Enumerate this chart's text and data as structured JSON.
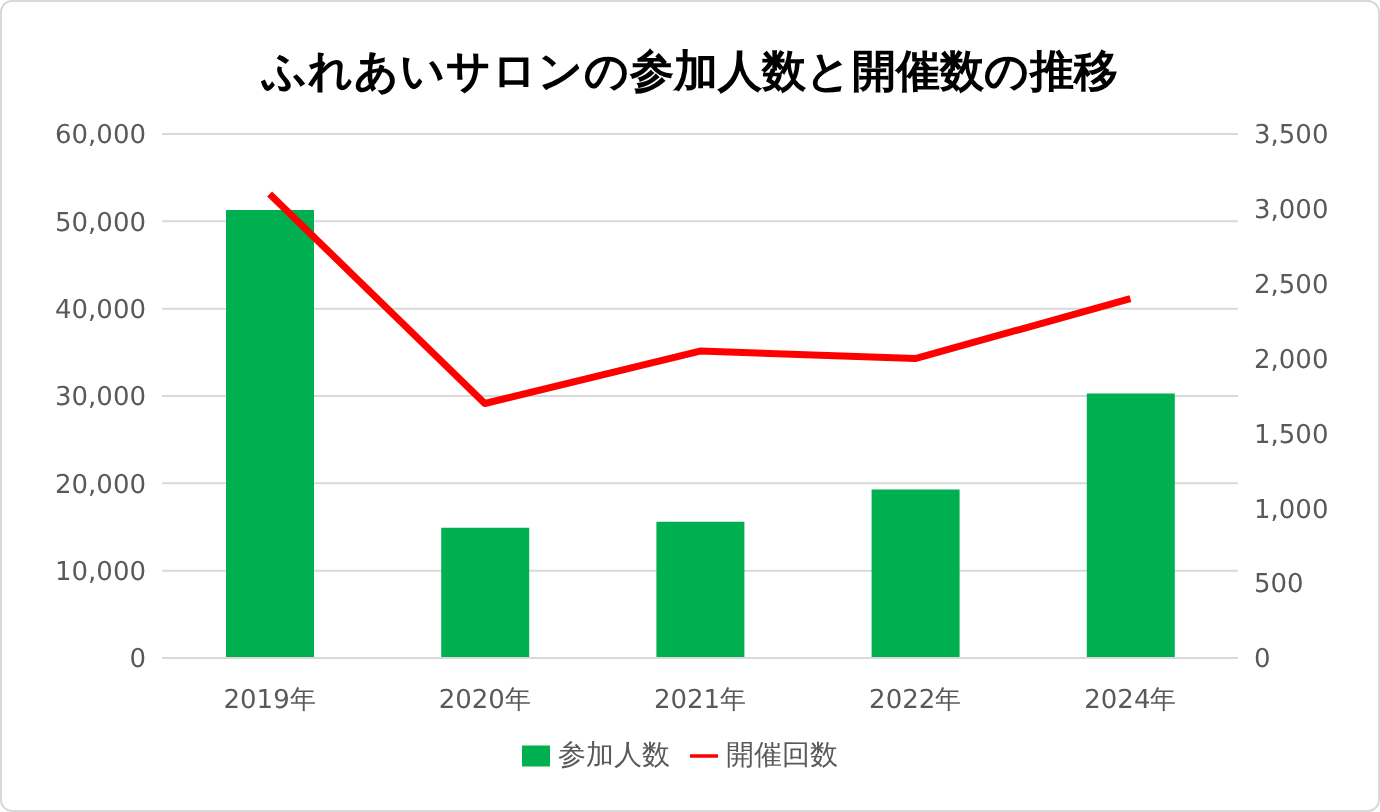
{
  "chart_data": {
    "type": "bar",
    "title": "ふれあいサロンの参加人数と開催数の推移",
    "categories": [
      "2019年",
      "2020年",
      "2021年",
      "2022年",
      "2024年"
    ],
    "series": [
      {
        "name": "参加人数",
        "color": "#00b050",
        "values": [
          51300,
          14900,
          15600,
          19300,
          30300
        ]
      },
      {
        "name": "開催回数",
        "type": "line",
        "axis": "y2",
        "color": "#ff0000",
        "values": [
          3100,
          1700,
          2050,
          2000,
          2400
        ]
      }
    ],
    "ylim": [
      0,
      60000
    ],
    "yticks": [
      0,
      {
        "value": 10000,
        "label": "10,000"
      },
      {
        "value": 20000,
        "label": "20,000"
      },
      {
        "value": 30000,
        "label": "30,000"
      },
      {
        "value": 40000,
        "label": "40,000"
      },
      {
        "value": 50000,
        "label": "50,000"
      },
      {
        "value": 60000,
        "label": "60,000"
      }
    ],
    "y2lim": [
      0,
      3500
    ],
    "y2ticks": [
      0,
      500,
      {
        "value": 1000,
        "label": "1,000"
      },
      {
        "value": 1500,
        "label": "1,500"
      },
      {
        "value": 2000,
        "label": "2,000"
      },
      {
        "value": 2500,
        "label": "2,500"
      },
      {
        "value": 3000,
        "label": "3,000"
      },
      {
        "value": 3500,
        "label": "3,500"
      }
    ],
    "grid": "y",
    "legend": "bottom",
    "marker": "none"
  }
}
